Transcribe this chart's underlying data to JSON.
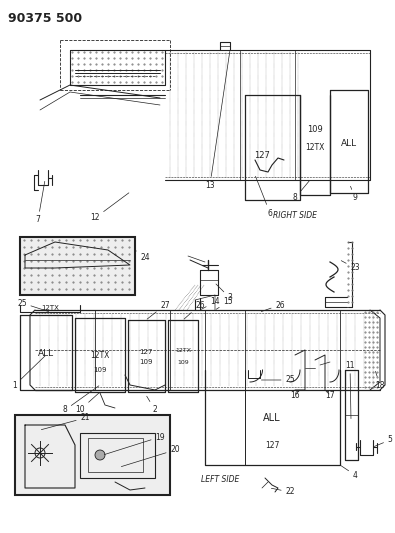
{
  "title": "90375 500",
  "bg_color": "#ffffff",
  "fig_width": 3.95,
  "fig_height": 5.33,
  "dpi": 100,
  "lc": "#222222",
  "gray": "#888888",
  "lightgray": "#cccccc",
  "right_side_label": "RIGHT SIDE",
  "left_side_label": "LEFT SIDE"
}
